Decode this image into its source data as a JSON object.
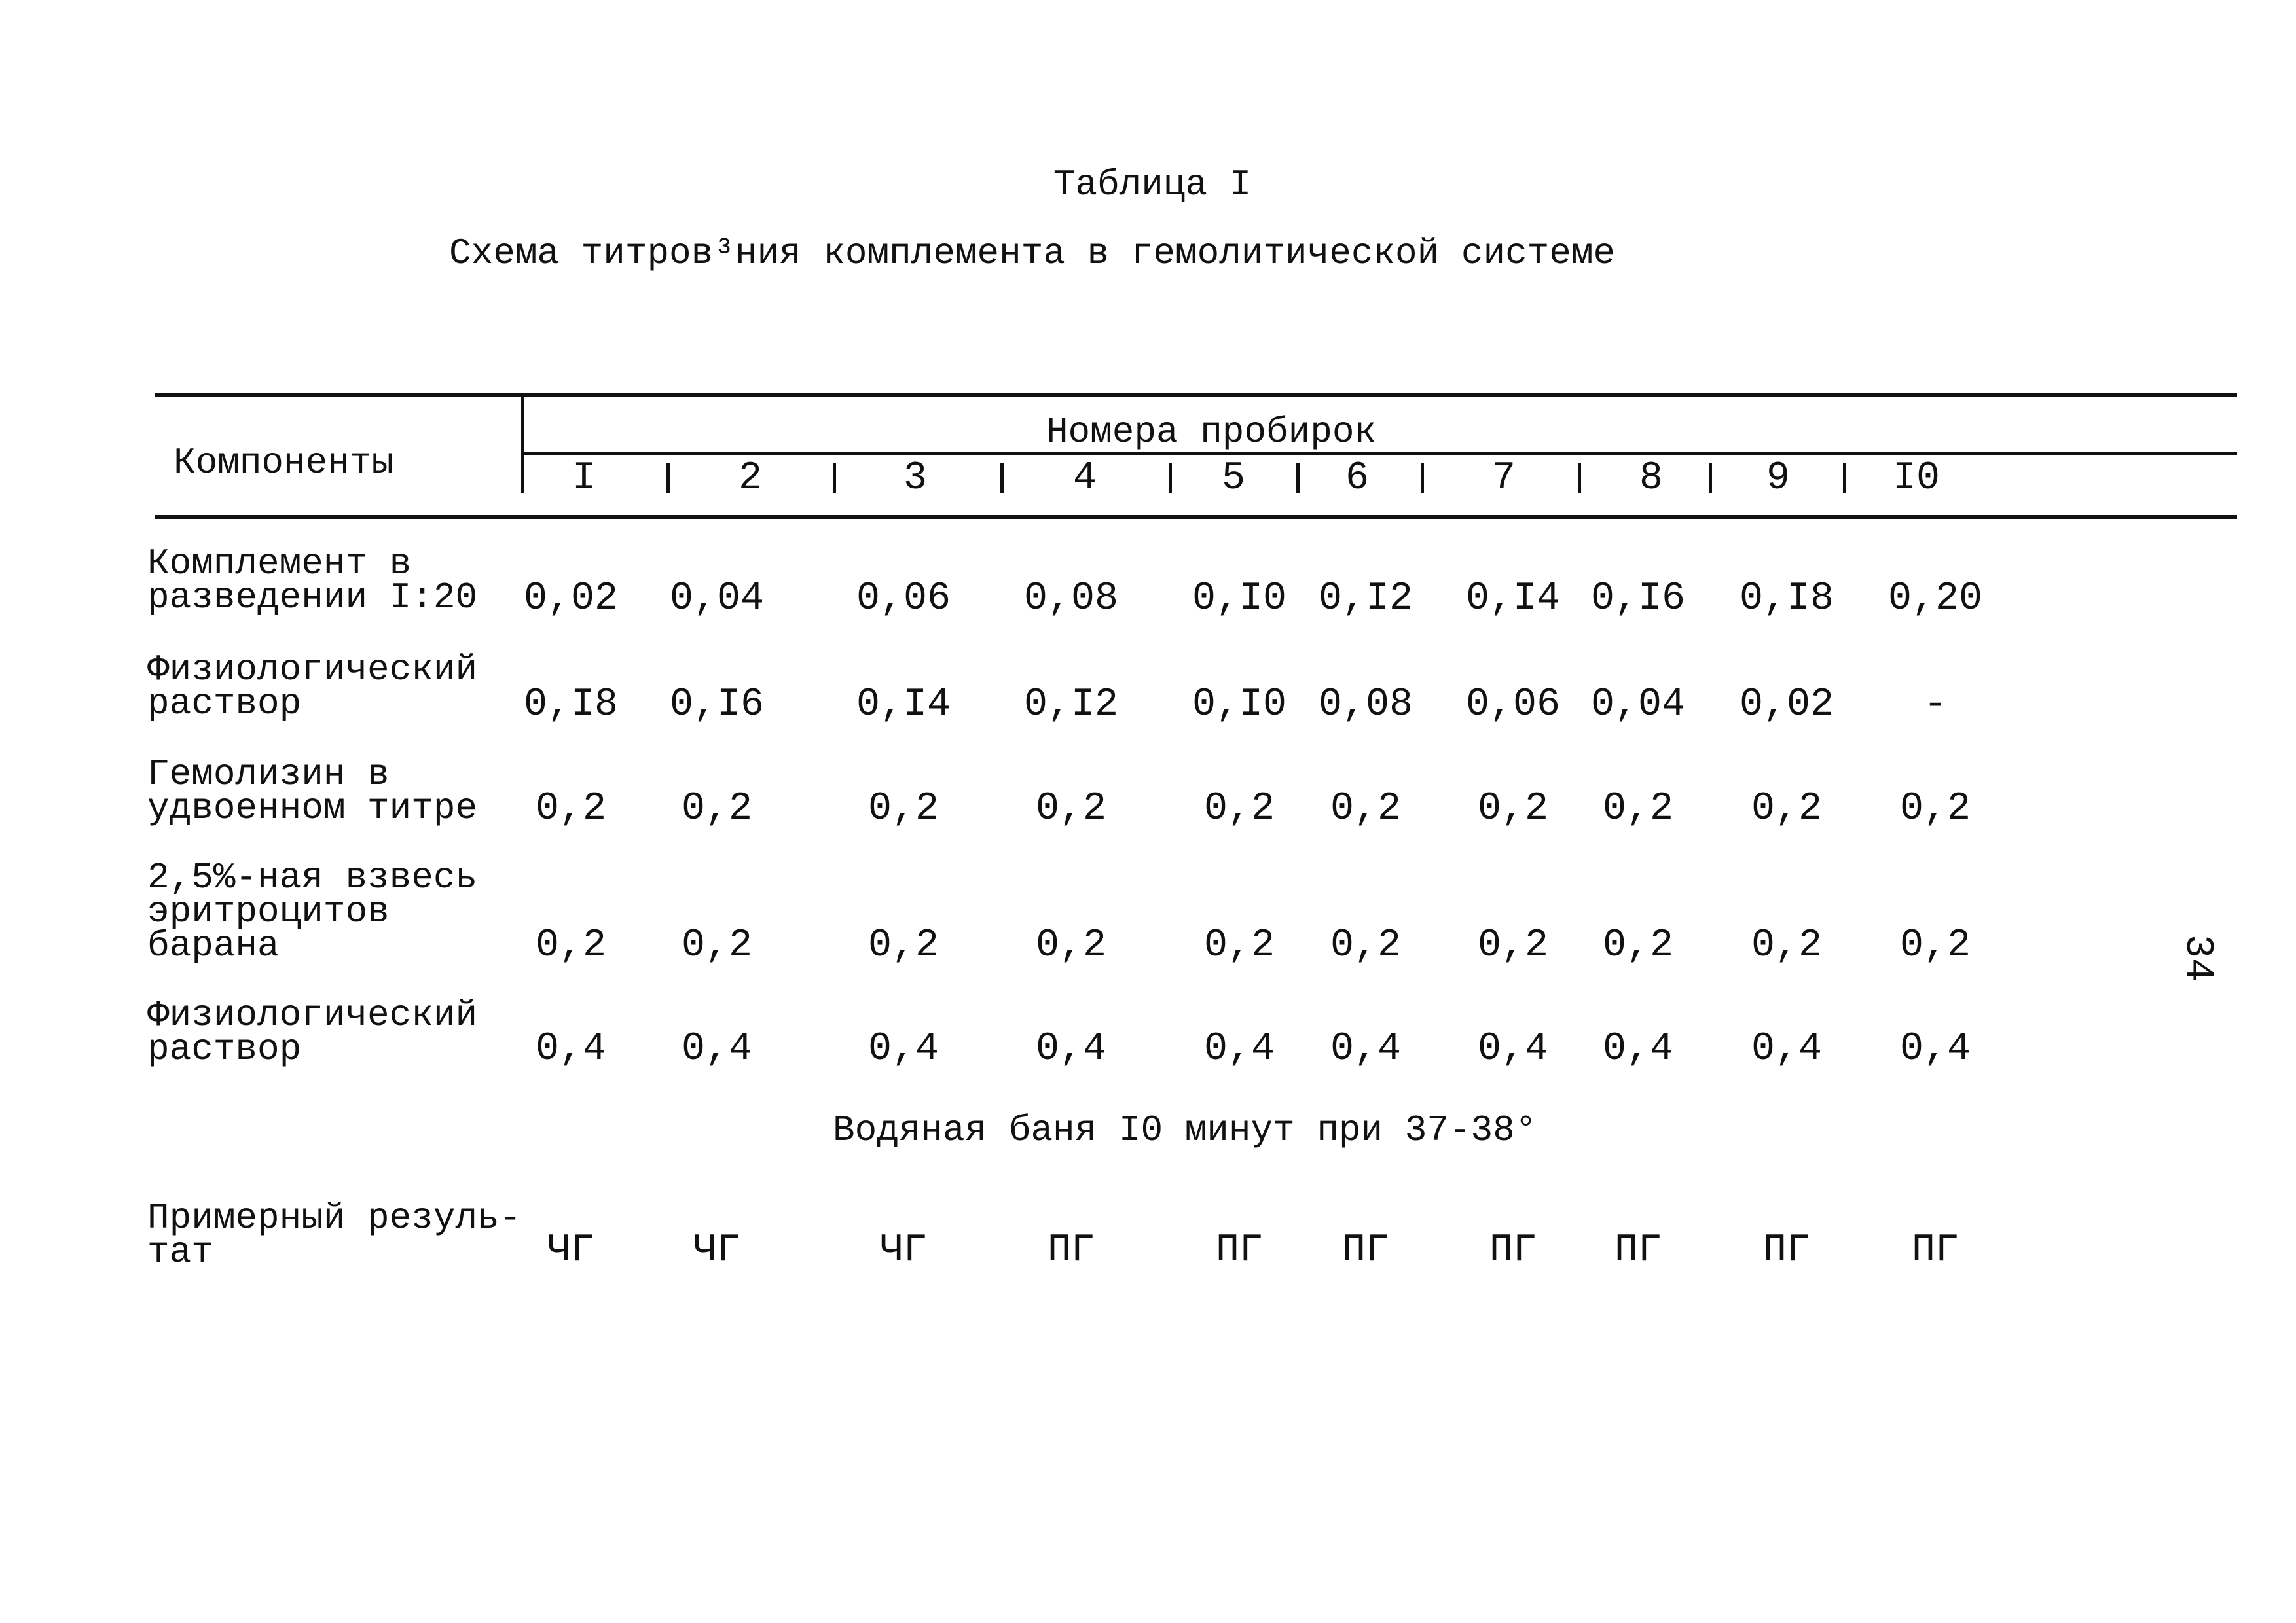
{
  "title": "Таблица I",
  "subtitle": "Схема титров³ния комплемента в гемолитической системе",
  "header": {
    "components": "Компоненты",
    "tubes_label": "Номера пробирок",
    "tubes": [
      "I",
      "2",
      "3",
      "4",
      "5",
      "6",
      "7",
      "8",
      "9",
      "I0"
    ]
  },
  "rows": [
    {
      "label": [
        "Комплемент в",
        "разведении I:20"
      ],
      "values": [
        "0,02",
        "0,04",
        "0,06",
        "0,08",
        "0,I0",
        "0,I2",
        "0,I4",
        "0,I6",
        "0,I8",
        "0,20"
      ]
    },
    {
      "label": [
        "Физиологический",
        "раствор"
      ],
      "values": [
        "0,I8",
        "0,I6",
        "0,I4",
        "0,I2",
        "0,I0",
        "0,08",
        "0,06",
        "0,04",
        "0,02",
        "-"
      ]
    },
    {
      "label": [
        "Гемолизин в",
        "удвоенном титре"
      ],
      "values": [
        "0,2",
        "0,2",
        "0,2",
        "0,2",
        "0,2",
        "0,2",
        "0,2",
        "0,2",
        "0,2",
        "0,2"
      ]
    },
    {
      "label": [
        "2,5%-ная взвесь",
        "эритроцитов",
        "барана"
      ],
      "values": [
        "0,2",
        "0,2",
        "0,2",
        "0,2",
        "0,2",
        "0,2",
        "0,2",
        "0,2",
        "0,2",
        "0,2"
      ]
    },
    {
      "label": [
        "Физиологический",
        "раствор"
      ],
      "values": [
        "0,4",
        "0,4",
        "0,4",
        "0,4",
        "0,4",
        "0,4",
        "0,4",
        "0,4",
        "0,4",
        "0,4"
      ]
    }
  ],
  "water_bath": "Водяная баня I0 минут при 37-38°",
  "result": {
    "label": [
      "Примерный резуль-",
      "тат"
    ],
    "values": [
      "ЧГ",
      "ЧГ",
      "ЧГ",
      "ПГ",
      "ПГ",
      "ПГ",
      "ПГ",
      "ПГ",
      "ПГ",
      "ПГ"
    ]
  },
  "page_number": "34"
}
